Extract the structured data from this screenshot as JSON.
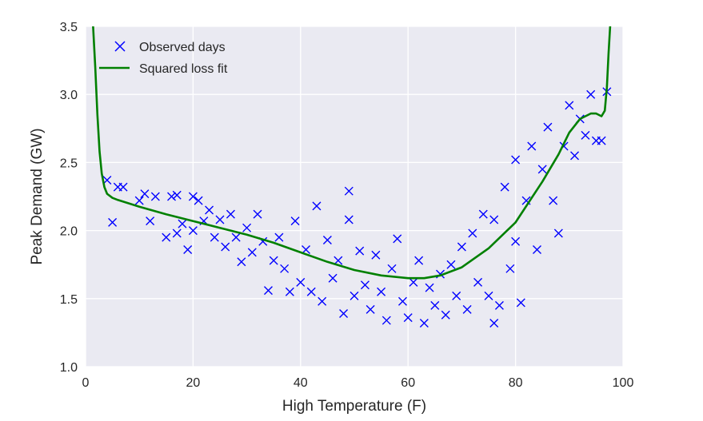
{
  "chart_data": {
    "type": "scatter",
    "title": "",
    "xlabel": "High Temperature (F)",
    "ylabel": "Peak Demand (GW)",
    "xlim": [
      0,
      100
    ],
    "ylim": [
      1.0,
      3.5
    ],
    "xticks": [
      "0",
      "20",
      "40",
      "60",
      "80",
      "100"
    ],
    "yticks": [
      "1.0",
      "1.5",
      "2.0",
      "2.5",
      "3.0",
      "3.5"
    ],
    "grid": true,
    "legend_position": "top-left",
    "background_color": "#EAEAF2",
    "series": [
      {
        "name": "Observed days",
        "kind": "scatter",
        "marker": "x",
        "color": "#0000FF",
        "points": [
          [
            4,
            2.37
          ],
          [
            5,
            2.06
          ],
          [
            6,
            2.32
          ],
          [
            7,
            2.32
          ],
          [
            10,
            2.22
          ],
          [
            11,
            2.27
          ],
          [
            12,
            2.07
          ],
          [
            13,
            2.25
          ],
          [
            15,
            1.95
          ],
          [
            16,
            2.25
          ],
          [
            17,
            2.26
          ],
          [
            17,
            1.98
          ],
          [
            18,
            2.05
          ],
          [
            19,
            1.86
          ],
          [
            20,
            2.25
          ],
          [
            20,
            2.0
          ],
          [
            21,
            2.22
          ],
          [
            22,
            2.07
          ],
          [
            23,
            2.15
          ],
          [
            24,
            1.95
          ],
          [
            25,
            2.08
          ],
          [
            26,
            1.88
          ],
          [
            27,
            2.12
          ],
          [
            28,
            1.95
          ],
          [
            29,
            1.77
          ],
          [
            30,
            2.02
          ],
          [
            31,
            1.84
          ],
          [
            32,
            2.12
          ],
          [
            33,
            1.92
          ],
          [
            34,
            1.56
          ],
          [
            35,
            1.78
          ],
          [
            36,
            1.95
          ],
          [
            37,
            1.72
          ],
          [
            38,
            1.55
          ],
          [
            39,
            2.07
          ],
          [
            40,
            1.62
          ],
          [
            41,
            1.86
          ],
          [
            42,
            1.55
          ],
          [
            43,
            2.18
          ],
          [
            44,
            1.48
          ],
          [
            45,
            1.93
          ],
          [
            46,
            1.65
          ],
          [
            47,
            1.78
          ],
          [
            48,
            1.39
          ],
          [
            49,
            2.29
          ],
          [
            49,
            2.08
          ],
          [
            50,
            1.52
          ],
          [
            51,
            1.85
          ],
          [
            52,
            1.6
          ],
          [
            53,
            1.42
          ],
          [
            54,
            1.82
          ],
          [
            55,
            1.55
          ],
          [
            56,
            1.34
          ],
          [
            57,
            1.72
          ],
          [
            58,
            1.94
          ],
          [
            59,
            1.48
          ],
          [
            60,
            1.36
          ],
          [
            61,
            1.62
          ],
          [
            62,
            1.78
          ],
          [
            63,
            1.32
          ],
          [
            64,
            1.58
          ],
          [
            65,
            1.45
          ],
          [
            66,
            1.68
          ],
          [
            67,
            1.38
          ],
          [
            68,
            1.75
          ],
          [
            69,
            1.52
          ],
          [
            70,
            1.88
          ],
          [
            71,
            1.42
          ],
          [
            72,
            1.98
          ],
          [
            73,
            1.62
          ],
          [
            74,
            2.12
          ],
          [
            75,
            1.52
          ],
          [
            76,
            1.32
          ],
          [
            76,
            2.08
          ],
          [
            77,
            1.45
          ],
          [
            78,
            2.32
          ],
          [
            79,
            1.72
          ],
          [
            80,
            2.52
          ],
          [
            80,
            1.92
          ],
          [
            81,
            1.47
          ],
          [
            82,
            2.22
          ],
          [
            83,
            2.62
          ],
          [
            84,
            1.86
          ],
          [
            85,
            2.45
          ],
          [
            86,
            2.76
          ],
          [
            87,
            2.22
          ],
          [
            88,
            1.98
          ],
          [
            89,
            2.62
          ],
          [
            90,
            2.92
          ],
          [
            91,
            2.55
          ],
          [
            92,
            2.82
          ],
          [
            93,
            2.7
          ],
          [
            94,
            3.0
          ],
          [
            95,
            2.66
          ],
          [
            96,
            2.66
          ],
          [
            97,
            3.02
          ]
        ]
      },
      {
        "name": "Squared loss fit",
        "kind": "line",
        "color": "#008000",
        "points": [
          [
            1.4,
            3.5
          ],
          [
            1.8,
            3.2
          ],
          [
            2.2,
            2.85
          ],
          [
            2.6,
            2.58
          ],
          [
            3.0,
            2.42
          ],
          [
            3.5,
            2.32
          ],
          [
            4.0,
            2.27
          ],
          [
            5,
            2.24
          ],
          [
            6,
            2.225
          ],
          [
            8,
            2.2
          ],
          [
            10,
            2.175
          ],
          [
            15,
            2.12
          ],
          [
            20,
            2.07
          ],
          [
            25,
            2.02
          ],
          [
            30,
            1.97
          ],
          [
            35,
            1.91
          ],
          [
            40,
            1.84
          ],
          [
            45,
            1.77
          ],
          [
            50,
            1.71
          ],
          [
            55,
            1.67
          ],
          [
            60,
            1.65
          ],
          [
            63,
            1.65
          ],
          [
            66,
            1.67
          ],
          [
            70,
            1.73
          ],
          [
            75,
            1.87
          ],
          [
            80,
            2.06
          ],
          [
            85,
            2.36
          ],
          [
            88,
            2.56
          ],
          [
            90,
            2.72
          ],
          [
            92,
            2.82
          ],
          [
            94,
            2.86
          ],
          [
            95,
            2.86
          ],
          [
            96,
            2.84
          ],
          [
            96.6,
            2.88
          ],
          [
            97.0,
            3.05
          ],
          [
            97.3,
            3.3
          ],
          [
            97.6,
            3.5
          ]
        ]
      }
    ]
  }
}
